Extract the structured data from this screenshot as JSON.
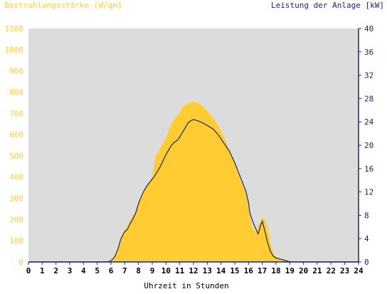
{
  "chart_data": {
    "type": "area",
    "title_left": "Bestrahlungsstärke [W/qm]",
    "title_right": "Leistung der Anlage [kW]",
    "xlabel": "Uhrzeit in Stunden",
    "xlim": [
      0,
      24
    ],
    "x_ticks": [
      "0",
      "1",
      "2",
      "3",
      "4",
      "5",
      "6",
      "7",
      "8",
      "9",
      "10",
      "11",
      "12",
      "13",
      "14",
      "15",
      "16",
      "17",
      "18",
      "19",
      "20",
      "21",
      "22",
      "23",
      "24"
    ],
    "y_left": {
      "ylim": [
        0,
        1100
      ],
      "ticks": [
        "0",
        "100",
        "200",
        "300",
        "400",
        "500",
        "600",
        "700",
        "800",
        "900",
        "1000",
        "1100"
      ]
    },
    "y_right": {
      "ylim": [
        0,
        40
      ],
      "ticks": [
        "0",
        "4",
        "8",
        "12",
        "16",
        "20",
        "24",
        "28",
        "32",
        "36",
        "40"
      ]
    },
    "grid": false,
    "colors": {
      "irradiance": "#ffcc33",
      "power": "#1a2a66",
      "plot_bg": "#dcdcdc",
      "left_axis_text": "#ffcc33",
      "right_axis_text": "#1a2a66"
    },
    "series": [
      {
        "axis": "left",
        "x": [
          0,
          5.7,
          5.9,
          6.1,
          6.3,
          6.5,
          6.7,
          6.9,
          7.0,
          7.2,
          7.4,
          7.6,
          7.8,
          8.0,
          8.2,
          8.4,
          8.6,
          8.8,
          9.0,
          9.2,
          9.3,
          9.5,
          9.6,
          9.8,
          10.0,
          10.2,
          10.4,
          10.6,
          10.8,
          11.0,
          11.2,
          11.5,
          11.8,
          12.0,
          12.3,
          12.6,
          13.0,
          13.4,
          13.8,
          14.2,
          14.6,
          15.0,
          15.4,
          15.8,
          16.0,
          16.1,
          16.3,
          16.5,
          16.7,
          16.9,
          17.0,
          17.2,
          17.4,
          17.6,
          17.8,
          18.0,
          18.3,
          18.6,
          18.9,
          19.1,
          19.5,
          24
        ],
        "values": [
          0,
          0,
          5,
          15,
          35,
          70,
          110,
          140,
          150,
          170,
          200,
          215,
          240,
          280,
          310,
          340,
          360,
          380,
          400,
          480,
          510,
          520,
          540,
          560,
          580,
          620,
          650,
          670,
          690,
          700,
          730,
          745,
          750,
          755,
          750,
          735,
          710,
          680,
          640,
          590,
          530,
          460,
          390,
          330,
          270,
          220,
          160,
          140,
          170,
          190,
          210,
          200,
          160,
          90,
          40,
          25,
          15,
          10,
          5,
          0,
          0,
          0
        ]
      },
      {
        "axis": "right",
        "x": [
          0,
          5.7,
          5.9,
          6.1,
          6.3,
          6.5,
          6.7,
          6.9,
          7.0,
          7.2,
          7.4,
          7.6,
          7.8,
          8.0,
          8.2,
          8.4,
          8.6,
          8.8,
          9.0,
          9.2,
          9.4,
          9.6,
          9.8,
          10.0,
          10.2,
          10.4,
          10.6,
          10.8,
          11.0,
          11.2,
          11.4,
          11.6,
          11.8,
          12.0,
          12.3,
          12.6,
          13.0,
          13.4,
          13.8,
          14.2,
          14.6,
          15.0,
          15.4,
          15.8,
          16.0,
          16.1,
          16.3,
          16.5,
          16.7,
          16.9,
          17.0,
          17.2,
          17.4,
          17.6,
          17.8,
          18.0,
          18.3,
          18.6,
          18.9,
          19.1,
          19.5,
          24
        ],
        "values": [
          0,
          0,
          0.1,
          0.4,
          1.0,
          2.2,
          3.8,
          4.8,
          5.2,
          5.6,
          6.6,
          7.4,
          8.4,
          10.0,
          11.2,
          12.2,
          13.0,
          13.6,
          14.2,
          14.8,
          15.6,
          16.4,
          17.4,
          18.4,
          19.2,
          20.0,
          20.5,
          20.8,
          21.4,
          22.2,
          23.0,
          23.8,
          24.2,
          24.4,
          24.2,
          23.9,
          23.4,
          22.8,
          21.8,
          20.4,
          19.0,
          17.0,
          14.6,
          12.2,
          10.2,
          8.4,
          7.0,
          5.8,
          4.8,
          6.4,
          7.0,
          5.2,
          3.2,
          1.8,
          1.0,
          0.7,
          0.5,
          0.3,
          0.1,
          0,
          0,
          0
        ]
      }
    ]
  }
}
